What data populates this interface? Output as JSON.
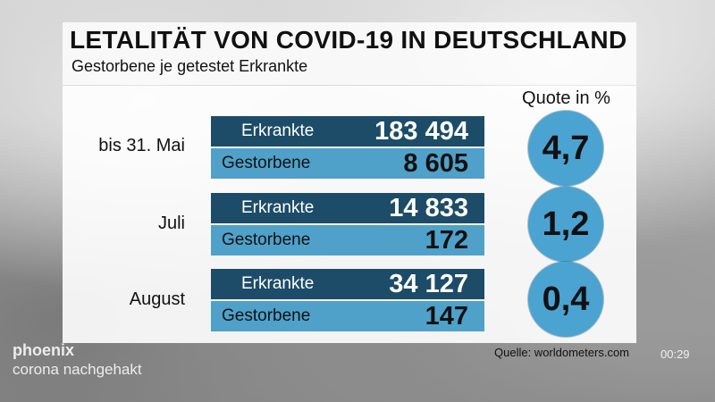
{
  "header": {
    "title": "LETALITÄT VON COVID-19 IN DEUTSCHLAND",
    "subtitle": "Gestorbene je getestet Erkrankte",
    "quote_heading": "Quote in %"
  },
  "periods": [
    {
      "label": "bis 31. Mai",
      "infected_label": "Erkrankte",
      "infected": "183 494",
      "deaths_label": "Gestorbene",
      "deaths": "8 605",
      "quote": "4,7"
    },
    {
      "label": "Juli",
      "infected_label": "Erkrankte",
      "infected": "14 833",
      "deaths_label": "Gestorbene",
      "deaths": "172",
      "quote": "1,2"
    },
    {
      "label": "August",
      "infected_label": "Erkrankte",
      "infected": "34 127",
      "deaths_label": "Gestorbene",
      "deaths": "147",
      "quote": "0,4"
    }
  ],
  "source": "Quelle: worldometers.com",
  "broadcast": {
    "channel_logo": "phoenix",
    "show_name": "corona nachgehakt",
    "timestamp": "00:29"
  },
  "colors": {
    "dark_row": "#1d4c68",
    "light_row": "#4fa1c9",
    "circle": "#4ba3d1"
  }
}
